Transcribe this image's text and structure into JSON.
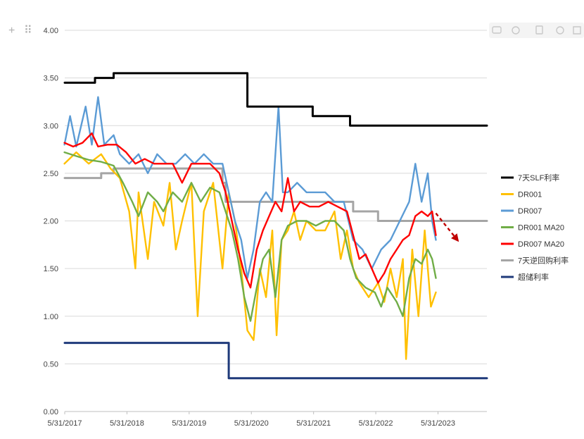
{
  "toolbar": {
    "add_glyph": "+",
    "drag_glyph": "⠿",
    "icons": [
      "plus-icon",
      "drag-handle-icon",
      "comment-icon",
      "settings-icon",
      "copy-icon",
      "more-icon",
      "expand-icon"
    ]
  },
  "chart_data": {
    "type": "line",
    "title": "",
    "xlabel": "",
    "ylabel": "",
    "ylim": [
      0,
      4
    ],
    "yticks": [
      "0.00",
      "0.50",
      "1.00",
      "1.50",
      "2.00",
      "2.50",
      "3.00",
      "3.50",
      "4.00"
    ],
    "xticks": [
      "5/31/2017",
      "5/31/2018",
      "5/31/2019",
      "5/31/2020",
      "5/31/2021",
      "5/31/2022",
      "5/31/2023"
    ],
    "xticks_year": [
      2017.414,
      2018.414,
      2019.414,
      2020.414,
      2021.414,
      2022.414,
      2023.414
    ],
    "xlim": [
      2017.414,
      2024.2
    ],
    "grid": true,
    "legend_position": "right",
    "series": [
      {
        "name": "7天SLF利率",
        "color": "#000000",
        "kind": "step",
        "points": [
          [
            2017.414,
            3.45
          ],
          [
            2017.9,
            3.5
          ],
          [
            2018.2,
            3.55
          ],
          [
            2020.25,
            3.55
          ],
          [
            2020.35,
            3.2
          ],
          [
            2021.4,
            3.2
          ],
          [
            2021.4,
            3.1
          ],
          [
            2022.0,
            3.1
          ],
          [
            2022.0,
            3.0
          ],
          [
            2024.2,
            3.0
          ]
        ]
      },
      {
        "name": "DR001",
        "color": "#ffc000",
        "kind": "line",
        "points": [
          [
            2017.41,
            2.6
          ],
          [
            2017.6,
            2.72
          ],
          [
            2017.8,
            2.6
          ],
          [
            2018.0,
            2.7
          ],
          [
            2018.15,
            2.55
          ],
          [
            2018.3,
            2.45
          ],
          [
            2018.45,
            2.1
          ],
          [
            2018.55,
            1.5
          ],
          [
            2018.6,
            2.3
          ],
          [
            2018.75,
            1.6
          ],
          [
            2018.85,
            2.2
          ],
          [
            2019.0,
            1.95
          ],
          [
            2019.1,
            2.4
          ],
          [
            2019.2,
            1.7
          ],
          [
            2019.3,
            2.0
          ],
          [
            2019.45,
            2.4
          ],
          [
            2019.55,
            1.0
          ],
          [
            2019.65,
            2.1
          ],
          [
            2019.8,
            2.4
          ],
          [
            2019.95,
            1.5
          ],
          [
            2020.05,
            2.3
          ],
          [
            2020.15,
            2.0
          ],
          [
            2020.25,
            1.5
          ],
          [
            2020.35,
            0.85
          ],
          [
            2020.45,
            0.75
          ],
          [
            2020.55,
            1.5
          ],
          [
            2020.65,
            1.2
          ],
          [
            2020.75,
            1.9
          ],
          [
            2020.82,
            0.8
          ],
          [
            2020.9,
            1.8
          ],
          [
            2021.0,
            1.9
          ],
          [
            2021.1,
            2.1
          ],
          [
            2021.2,
            1.8
          ],
          [
            2021.3,
            2.0
          ],
          [
            2021.45,
            1.9
          ],
          [
            2021.6,
            1.9
          ],
          [
            2021.75,
            2.1
          ],
          [
            2021.85,
            1.6
          ],
          [
            2021.95,
            1.9
          ],
          [
            2022.05,
            1.5
          ],
          [
            2022.15,
            1.35
          ],
          [
            2022.3,
            1.2
          ],
          [
            2022.45,
            1.35
          ],
          [
            2022.55,
            1.15
          ],
          [
            2022.65,
            1.5
          ],
          [
            2022.75,
            1.2
          ],
          [
            2022.85,
            1.6
          ],
          [
            2022.9,
            0.55
          ],
          [
            2023.0,
            1.7
          ],
          [
            2023.1,
            1.0
          ],
          [
            2023.2,
            1.9
          ],
          [
            2023.3,
            1.1
          ],
          [
            2023.38,
            1.25
          ]
        ]
      },
      {
        "name": "DR007",
        "color": "#5b9bd5",
        "kind": "line",
        "points": [
          [
            2017.41,
            2.8
          ],
          [
            2017.5,
            3.1
          ],
          [
            2017.6,
            2.78
          ],
          [
            2017.75,
            3.2
          ],
          [
            2017.85,
            2.8
          ],
          [
            2017.95,
            3.3
          ],
          [
            2018.05,
            2.8
          ],
          [
            2018.2,
            2.9
          ],
          [
            2018.3,
            2.7
          ],
          [
            2018.45,
            2.6
          ],
          [
            2018.6,
            2.7
          ],
          [
            2018.75,
            2.5
          ],
          [
            2018.9,
            2.7
          ],
          [
            2019.05,
            2.6
          ],
          [
            2019.2,
            2.6
          ],
          [
            2019.35,
            2.7
          ],
          [
            2019.5,
            2.6
          ],
          [
            2019.65,
            2.7
          ],
          [
            2019.8,
            2.6
          ],
          [
            2019.95,
            2.6
          ],
          [
            2020.05,
            2.3
          ],
          [
            2020.15,
            2.0
          ],
          [
            2020.25,
            1.8
          ],
          [
            2020.35,
            1.4
          ],
          [
            2020.45,
            1.7
          ],
          [
            2020.55,
            2.2
          ],
          [
            2020.65,
            2.3
          ],
          [
            2020.75,
            2.2
          ],
          [
            2020.85,
            3.2
          ],
          [
            2020.92,
            2.3
          ],
          [
            2021.0,
            2.3
          ],
          [
            2021.15,
            2.4
          ],
          [
            2021.3,
            2.3
          ],
          [
            2021.45,
            2.3
          ],
          [
            2021.6,
            2.3
          ],
          [
            2021.75,
            2.2
          ],
          [
            2021.9,
            2.2
          ],
          [
            2022.05,
            1.8
          ],
          [
            2022.2,
            1.7
          ],
          [
            2022.35,
            1.5
          ],
          [
            2022.5,
            1.7
          ],
          [
            2022.65,
            1.8
          ],
          [
            2022.8,
            2.0
          ],
          [
            2022.95,
            2.2
          ],
          [
            2023.05,
            2.6
          ],
          [
            2023.15,
            2.2
          ],
          [
            2023.25,
            2.5
          ],
          [
            2023.32,
            2.0
          ],
          [
            2023.38,
            1.8
          ]
        ]
      },
      {
        "name": "DR001 MA20",
        "color": "#70ad47",
        "kind": "line",
        "points": [
          [
            2017.41,
            2.72
          ],
          [
            2017.6,
            2.68
          ],
          [
            2017.8,
            2.64
          ],
          [
            2018.0,
            2.62
          ],
          [
            2018.2,
            2.58
          ],
          [
            2018.35,
            2.4
          ],
          [
            2018.5,
            2.2
          ],
          [
            2018.6,
            2.05
          ],
          [
            2018.75,
            2.3
          ],
          [
            2018.9,
            2.2
          ],
          [
            2019.0,
            2.1
          ],
          [
            2019.15,
            2.3
          ],
          [
            2019.3,
            2.2
          ],
          [
            2019.45,
            2.4
          ],
          [
            2019.6,
            2.2
          ],
          [
            2019.75,
            2.35
          ],
          [
            2019.9,
            2.3
          ],
          [
            2020.0,
            2.1
          ],
          [
            2020.1,
            1.9
          ],
          [
            2020.2,
            1.6
          ],
          [
            2020.3,
            1.2
          ],
          [
            2020.4,
            0.95
          ],
          [
            2020.5,
            1.3
          ],
          [
            2020.6,
            1.6
          ],
          [
            2020.7,
            1.7
          ],
          [
            2020.8,
            1.2
          ],
          [
            2020.9,
            1.8
          ],
          [
            2021.0,
            1.95
          ],
          [
            2021.15,
            2.0
          ],
          [
            2021.3,
            2.0
          ],
          [
            2021.45,
            1.95
          ],
          [
            2021.6,
            2.0
          ],
          [
            2021.75,
            2.0
          ],
          [
            2021.9,
            1.9
          ],
          [
            2022.0,
            1.6
          ],
          [
            2022.1,
            1.4
          ],
          [
            2022.25,
            1.3
          ],
          [
            2022.4,
            1.25
          ],
          [
            2022.5,
            1.1
          ],
          [
            2022.6,
            1.3
          ],
          [
            2022.75,
            1.15
          ],
          [
            2022.85,
            1.0
          ],
          [
            2022.95,
            1.4
          ],
          [
            2023.05,
            1.6
          ],
          [
            2023.15,
            1.55
          ],
          [
            2023.25,
            1.7
          ],
          [
            2023.32,
            1.6
          ],
          [
            2023.38,
            1.4
          ]
        ]
      },
      {
        "name": "DR007 MA20",
        "color": "#ff0000",
        "kind": "line",
        "points": [
          [
            2017.41,
            2.82
          ],
          [
            2017.55,
            2.78
          ],
          [
            2017.7,
            2.82
          ],
          [
            2017.85,
            2.92
          ],
          [
            2017.95,
            2.78
          ],
          [
            2018.1,
            2.8
          ],
          [
            2018.25,
            2.8
          ],
          [
            2018.4,
            2.72
          ],
          [
            2018.55,
            2.6
          ],
          [
            2018.7,
            2.65
          ],
          [
            2018.85,
            2.6
          ],
          [
            2019.0,
            2.6
          ],
          [
            2019.15,
            2.6
          ],
          [
            2019.3,
            2.4
          ],
          [
            2019.45,
            2.6
          ],
          [
            2019.6,
            2.6
          ],
          [
            2019.75,
            2.6
          ],
          [
            2019.9,
            2.5
          ],
          [
            2020.0,
            2.3
          ],
          [
            2020.1,
            2.0
          ],
          [
            2020.2,
            1.7
          ],
          [
            2020.3,
            1.45
          ],
          [
            2020.4,
            1.3
          ],
          [
            2020.5,
            1.7
          ],
          [
            2020.6,
            1.9
          ],
          [
            2020.7,
            2.05
          ],
          [
            2020.8,
            2.2
          ],
          [
            2020.9,
            2.1
          ],
          [
            2021.0,
            2.45
          ],
          [
            2021.1,
            2.1
          ],
          [
            2021.2,
            2.2
          ],
          [
            2021.35,
            2.15
          ],
          [
            2021.5,
            2.15
          ],
          [
            2021.65,
            2.2
          ],
          [
            2021.8,
            2.15
          ],
          [
            2021.95,
            2.1
          ],
          [
            2022.05,
            1.85
          ],
          [
            2022.15,
            1.6
          ],
          [
            2022.25,
            1.65
          ],
          [
            2022.35,
            1.5
          ],
          [
            2022.45,
            1.35
          ],
          [
            2022.55,
            1.45
          ],
          [
            2022.65,
            1.6
          ],
          [
            2022.75,
            1.7
          ],
          [
            2022.85,
            1.8
          ],
          [
            2022.95,
            1.85
          ],
          [
            2023.05,
            2.05
          ],
          [
            2023.15,
            2.1
          ],
          [
            2023.25,
            2.05
          ],
          [
            2023.32,
            2.1
          ],
          [
            2023.38,
            1.85
          ]
        ]
      },
      {
        "name": "7天逆回购利率",
        "color": "#a5a5a5",
        "kind": "step",
        "points": [
          [
            2017.414,
            2.45
          ],
          [
            2018.0,
            2.45
          ],
          [
            2018.0,
            2.5
          ],
          [
            2018.2,
            2.5
          ],
          [
            2018.2,
            2.55
          ],
          [
            2019.3,
            2.55
          ],
          [
            2019.3,
            2.55
          ],
          [
            2019.95,
            2.55
          ],
          [
            2019.95,
            2.4
          ],
          [
            2020.0,
            2.4
          ],
          [
            2020.0,
            2.2
          ],
          [
            2022.05,
            2.2
          ],
          [
            2022.05,
            2.1
          ],
          [
            2022.45,
            2.1
          ],
          [
            2022.45,
            2.0
          ],
          [
            2024.2,
            2.0
          ]
        ]
      },
      {
        "name": "超储利率",
        "color": "#1f3a7a",
        "kind": "step",
        "points": [
          [
            2017.414,
            0.72
          ],
          [
            2020.05,
            0.72
          ],
          [
            2020.05,
            0.35
          ],
          [
            2024.2,
            0.35
          ]
        ]
      }
    ],
    "annotation": {
      "type": "dashed-arrow",
      "color": "#c00000",
      "from": [
        2023.38,
        2.08
      ],
      "to": [
        2023.75,
        1.78
      ]
    }
  }
}
